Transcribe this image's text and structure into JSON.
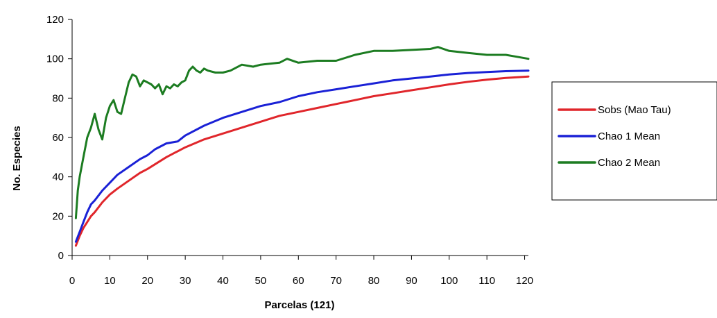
{
  "chart_data": {
    "type": "line",
    "title": "",
    "xlabel": "Parcelas (121)",
    "ylabel": "No. Especies",
    "xlim": [
      0,
      121
    ],
    "ylim": [
      0,
      120
    ],
    "xticks": [
      0,
      10,
      20,
      30,
      40,
      50,
      60,
      70,
      80,
      90,
      100,
      110,
      120
    ],
    "yticks": [
      0,
      20,
      40,
      60,
      80,
      100,
      120
    ],
    "grid": false,
    "legend_position": "right",
    "series": [
      {
        "name": "Sobs (Mao Tau)",
        "color": "#e0262b",
        "x": [
          1,
          2,
          3,
          4,
          5,
          6,
          8,
          10,
          12,
          15,
          18,
          20,
          25,
          30,
          35,
          40,
          45,
          50,
          55,
          60,
          65,
          70,
          75,
          80,
          85,
          90,
          95,
          100,
          105,
          110,
          115,
          121
        ],
        "y": [
          5,
          10,
          14,
          17,
          20,
          22,
          27,
          31,
          34,
          38,
          42,
          44,
          50,
          55,
          59,
          62,
          65,
          68,
          71,
          73,
          75,
          77,
          79,
          81,
          82.5,
          84,
          85.5,
          87,
          88.3,
          89.4,
          90.3,
          91
        ]
      },
      {
        "name": "Chao 1 Mean",
        "color": "#1a21d6",
        "x": [
          1,
          2,
          3,
          4,
          5,
          6,
          8,
          10,
          12,
          15,
          18,
          20,
          22,
          25,
          28,
          30,
          35,
          40,
          45,
          50,
          55,
          60,
          65,
          70,
          75,
          80,
          85,
          90,
          95,
          100,
          105,
          110,
          115,
          121
        ],
        "y": [
          7,
          12,
          17,
          22,
          26,
          28,
          33,
          37,
          41,
          45,
          49,
          51,
          54,
          57,
          58,
          61,
          66,
          70,
          73,
          76,
          78,
          81,
          83,
          84.5,
          86,
          87.5,
          89,
          90,
          91,
          92,
          92.8,
          93.3,
          93.7,
          94
        ]
      },
      {
        "name": "Chao 2 Mean",
        "color": "#1c7c21",
        "x": [
          1,
          1.5,
          2,
          3,
          4,
          5,
          6,
          7,
          8,
          9,
          10,
          11,
          12,
          13,
          14,
          15,
          16,
          17,
          18,
          19,
          20,
          21,
          22,
          23,
          24,
          25,
          26,
          27,
          28,
          29,
          30,
          31,
          32,
          33,
          34,
          35,
          36,
          38,
          40,
          42,
          45,
          48,
          50,
          55,
          57,
          60,
          65,
          70,
          75,
          80,
          85,
          90,
          95,
          97,
          100,
          105,
          110,
          115,
          118,
          121
        ],
        "y": [
          19,
          33,
          40,
          50,
          60,
          65,
          72,
          64,
          59,
          70,
          76,
          79,
          73,
          72,
          80,
          88,
          92,
          91,
          86,
          89,
          88,
          87,
          85,
          87,
          82,
          86,
          85,
          87,
          86,
          88,
          89,
          94,
          96,
          94,
          93,
          95,
          94,
          93,
          93,
          94,
          97,
          96,
          97,
          98,
          100,
          98,
          99,
          99,
          102,
          104,
          104,
          104.5,
          105,
          106,
          104,
          103,
          102,
          102,
          101,
          100
        ]
      }
    ]
  }
}
